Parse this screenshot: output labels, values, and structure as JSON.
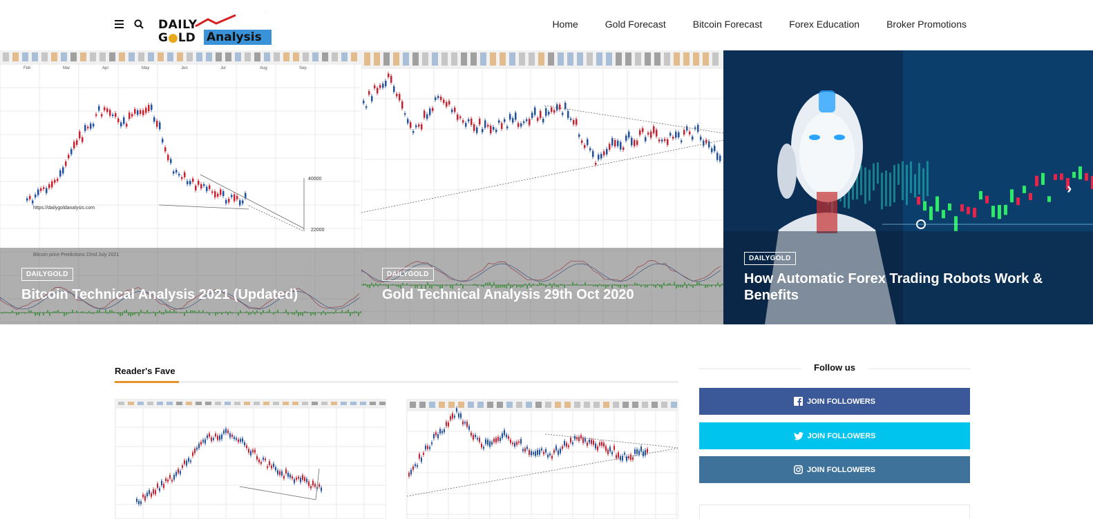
{
  "header": {
    "logo": {
      "line1": "DAILY",
      "line2": "G",
      "line2b": "LD",
      "analysis": "Analysis"
    },
    "nav": [
      "Home",
      "Gold Forecast",
      "Bitcoin Forecast",
      "Forex Education",
      "Broker Promotions"
    ],
    "icons": {
      "menu": "hamburger-icon",
      "search": "search-icon"
    }
  },
  "slider": {
    "slides": [
      {
        "tag": "DAILYGOLD",
        "title": "Bitcoin Technical Analysis 2021 (Updated)",
        "chart_labels": {
          "watermark": "https://dailygoldanalysis.com",
          "caption": "Bitcoin price Predictions 22nd July 2021",
          "hi": "40000",
          "lo": "22000",
          "months": [
            "Feb",
            "Mar",
            "Apr",
            "May",
            "Jun",
            "Jul",
            "Aug",
            "Sep"
          ]
        }
      },
      {
        "tag": "DAILYGOLD",
        "title": "Gold Technical Analysis 29th Oct 2020"
      },
      {
        "tag": "DAILYGOLD",
        "title": "How Automatic Forex Trading Robots Work & Benefits"
      }
    ],
    "arrows": {
      "prev": "‹",
      "next": "›"
    }
  },
  "fave": {
    "title": "Reader's Fave"
  },
  "follow": {
    "title": "Follow us",
    "buttons": [
      {
        "network": "facebook",
        "label": "JOIN FOLLOWERS",
        "color": "#3b5998",
        "icon": "facebook-icon"
      },
      {
        "network": "twitter",
        "label": "JOIN FOLLOWERS",
        "color": "#00c3ee",
        "icon": "twitter-icon"
      },
      {
        "network": "instagram",
        "label": "JOIN FOLLOWERS",
        "color": "#3f729b",
        "icon": "instagram-icon"
      }
    ]
  }
}
